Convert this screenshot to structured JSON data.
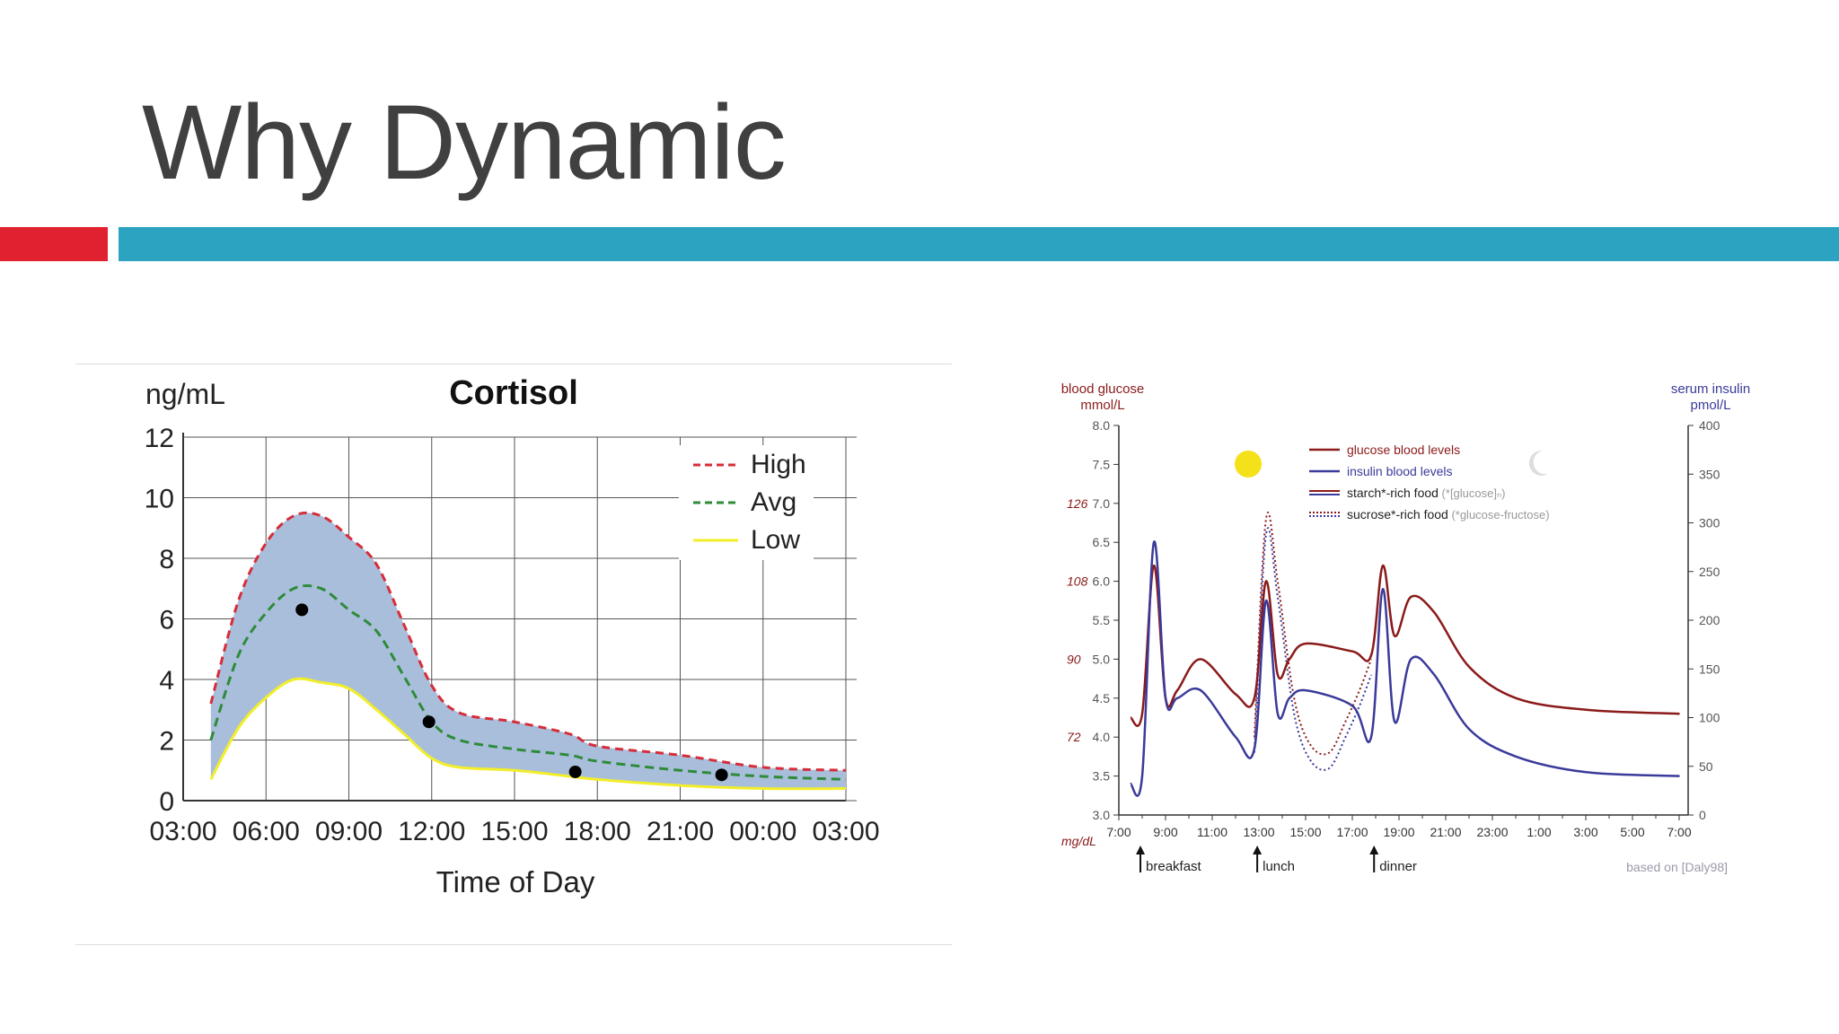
{
  "slide": {
    "title": "Why Dynamic"
  },
  "colors": {
    "accent_red": "#e0212f",
    "accent_blue": "#2ba3c1",
    "title_text": "#404040",
    "cortisol_band": "#a9bedb",
    "cortisol_high": "#d62d3a",
    "cortisol_avg": "#2e8b3a",
    "cortisol_low": "#f2ee2a",
    "glucose_line": "#8b1a1a",
    "insulin_line": "#3a3a9a",
    "sun": "#f5e11a"
  },
  "chart_data": [
    {
      "type": "area",
      "title": "Cortisol",
      "ylabel": "ng/mL",
      "xlabel": "Time of Day",
      "x_ticks": [
        "03:00",
        "06:00",
        "09:00",
        "12:00",
        "15:00",
        "18:00",
        "21:00",
        "00:00",
        "03:00"
      ],
      "y_ticks": [
        "0",
        "2",
        "4",
        "6",
        "8",
        "10",
        "12"
      ],
      "ylim": [
        0,
        12
      ],
      "grid": true,
      "legend_position": "top-right",
      "x_hours": [
        4.0,
        5.0,
        6.0,
        7.0,
        8.0,
        9.0,
        10.0,
        11.0,
        12.0,
        13.0,
        15.0,
        17.0,
        18.0,
        21.0,
        24.0,
        27.5
      ],
      "series": [
        {
          "name": "High",
          "style": "dashed",
          "values": [
            3.2,
            6.6,
            8.5,
            9.4,
            9.4,
            8.7,
            7.8,
            5.8,
            3.8,
            2.9,
            2.6,
            2.2,
            1.8,
            1.5,
            1.1,
            1.0
          ]
        },
        {
          "name": "Avg",
          "style": "dashed",
          "values": [
            2.0,
            4.8,
            6.2,
            7.0,
            7.0,
            6.3,
            5.6,
            4.1,
            2.6,
            2.0,
            1.7,
            1.5,
            1.3,
            1.0,
            0.8,
            0.7
          ]
        },
        {
          "name": "Low",
          "style": "solid",
          "values": [
            0.7,
            2.4,
            3.4,
            4.0,
            3.9,
            3.7,
            3.0,
            2.2,
            1.4,
            1.1,
            1.0,
            0.8,
            0.7,
            0.5,
            0.4,
            0.4
          ]
        }
      ],
      "points": [
        {
          "x": 7.3,
          "y": 6.3
        },
        {
          "x": 11.9,
          "y": 2.6
        },
        {
          "x": 17.2,
          "y": 0.95
        },
        {
          "x": 22.5,
          "y": 0.85
        }
      ]
    },
    {
      "type": "line",
      "ylabel_left_line1": "blood glucose",
      "ylabel_left_line2": "mmol/L",
      "ylabel_right_line1": "serum insulin",
      "ylabel_right_line2": "pmol/L",
      "ylabel_left_alt": "mg/dL",
      "y_left_ticks": [
        "3.0",
        "3.5",
        "4.0",
        "4.5",
        "5.0",
        "5.5",
        "6.0",
        "6.5",
        "7.0",
        "7.5",
        "8.0"
      ],
      "y_left_alt_ticks": [
        {
          "label": "72",
          "at": 4.0
        },
        {
          "label": "90",
          "at": 5.0
        },
        {
          "label": "108",
          "at": 6.0
        },
        {
          "label": "126",
          "at": 7.0
        }
      ],
      "y_right_ticks": [
        "0",
        "50",
        "100",
        "150",
        "200",
        "250",
        "300",
        "350",
        "400"
      ],
      "x_ticks": [
        "7:00",
        "9:00",
        "11:00",
        "13:00",
        "15:00",
        "17:00",
        "19:00",
        "21:00",
        "23:00",
        "1:00",
        "3:00",
        "5:00",
        "7:00"
      ],
      "ylim_left": [
        3.0,
        8.0
      ],
      "ylim_right": [
        0,
        400
      ],
      "meals": [
        "breakfast",
        "lunch",
        "dinner"
      ],
      "meal_hours": [
        8.0,
        13.0,
        18.0
      ],
      "source_note": "based on [Daly98]",
      "legend_position": "top-center",
      "legend": [
        {
          "label": "glucose blood levels"
        },
        {
          "label": "insulin blood levels"
        },
        {
          "label": "starch*-rich food",
          "note": "(*[glucose]ₙ)"
        },
        {
          "label": "sucrose*-rich food",
          "note": "(*glucose-fructose)"
        }
      ],
      "x_hours": [
        7.5,
        8.0,
        8.5,
        9.0,
        9.5,
        10.5,
        12.0,
        12.8,
        13.3,
        13.8,
        14.3,
        15.0,
        17.0,
        17.8,
        18.3,
        18.8,
        19.5,
        20.5,
        22.0,
        24.0,
        27.0,
        31.0
      ],
      "series": [
        {
          "name": "glucose blood levels",
          "axis": "left",
          "values": [
            4.25,
            4.3,
            6.2,
            4.5,
            4.6,
            5.0,
            4.55,
            4.5,
            6.0,
            4.8,
            5.0,
            5.2,
            5.1,
            5.05,
            6.2,
            5.3,
            5.8,
            5.6,
            4.9,
            4.5,
            4.35,
            4.3
          ]
        },
        {
          "name": "insulin blood levels",
          "axis": "left",
          "values": [
            3.4,
            3.5,
            6.5,
            4.5,
            4.5,
            4.6,
            4.0,
            3.85,
            5.75,
            4.3,
            4.5,
            4.6,
            4.4,
            4.0,
            5.9,
            4.2,
            5.0,
            4.8,
            4.1,
            3.75,
            3.55,
            3.5
          ]
        }
      ],
      "sucrose_food": {
        "x_hours": [
          12.8,
          13.3,
          13.8,
          14.5,
          15.2,
          16.0,
          16.7,
          17.3,
          17.8
        ],
        "values": [
          4.0,
          6.8,
          6.0,
          4.5,
          3.9,
          3.8,
          4.2,
          4.6,
          5.0
        ]
      }
    }
  ]
}
